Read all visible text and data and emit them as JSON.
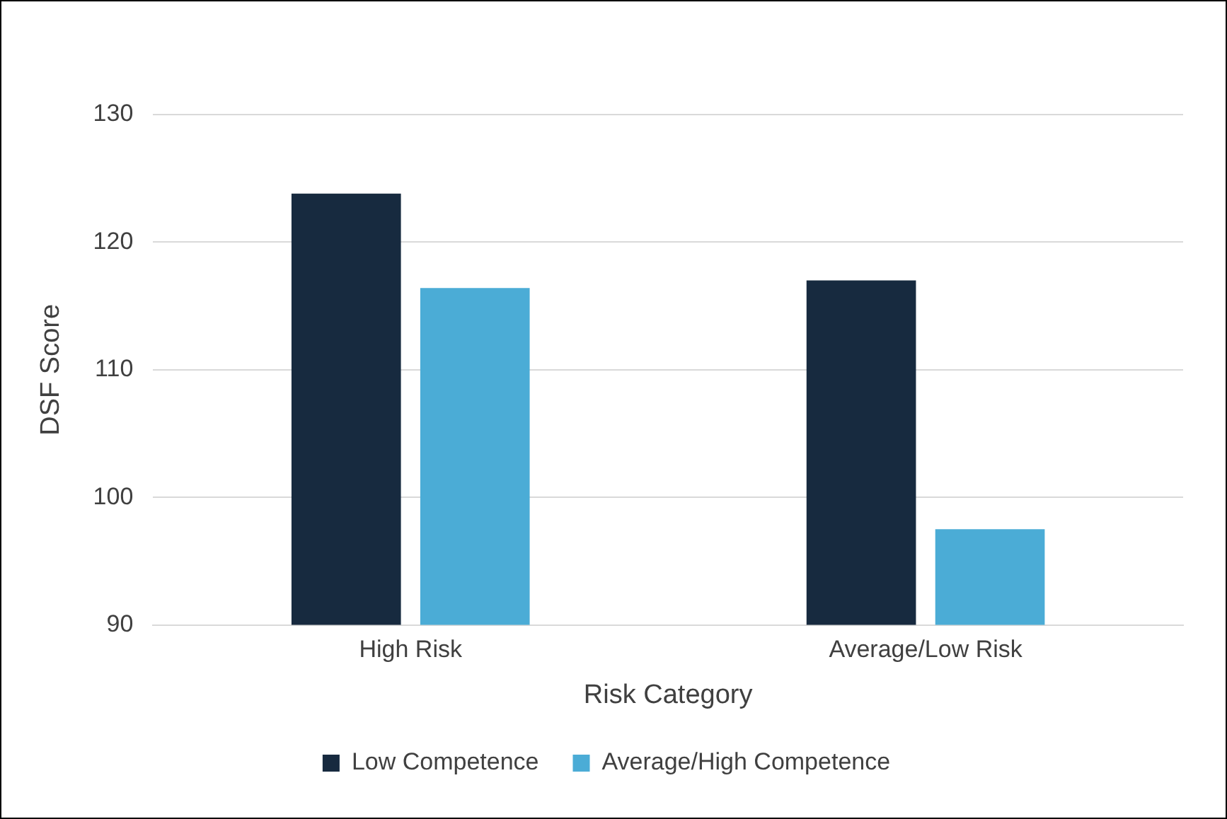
{
  "chart_data": {
    "type": "bar",
    "xlabel": "Risk Category",
    "ylabel": "DSF Score",
    "categories": [
      "High Risk",
      "Average/Low Risk"
    ],
    "series": [
      {
        "name": "Low Competence",
        "color": "#172a3f",
        "values": [
          123.8,
          117.0
        ]
      },
      {
        "name": "Average/High Competence",
        "color": "#4bacd6",
        "values": [
          116.4,
          97.5
        ]
      }
    ],
    "ylim": [
      90,
      130
    ],
    "yticks": [
      90,
      100,
      110,
      120,
      130
    ],
    "grid": "y",
    "legend": "bottom"
  }
}
